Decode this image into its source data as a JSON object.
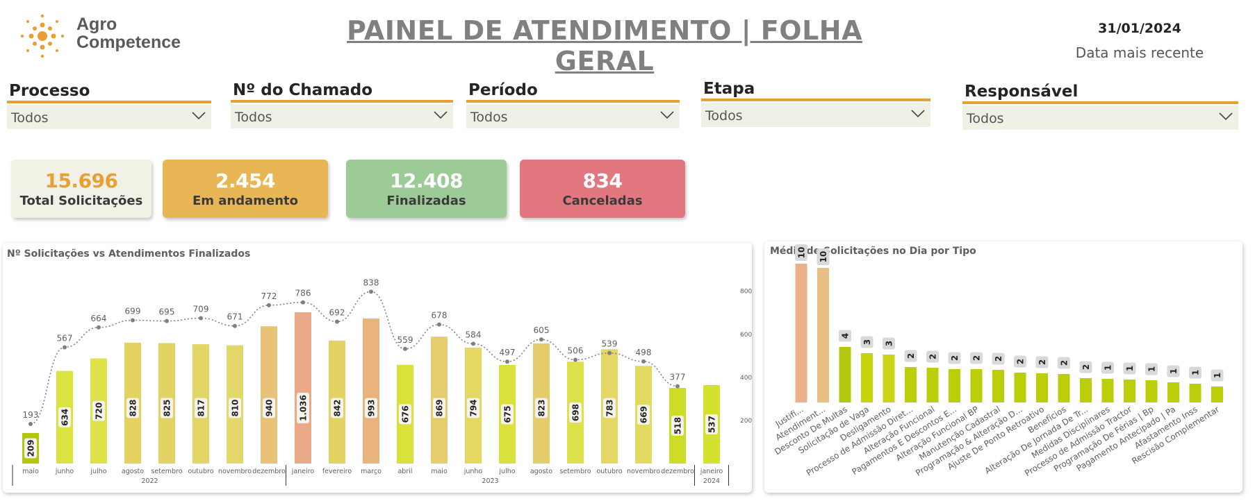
{
  "header": {
    "logo_line1": "Agro",
    "logo_line2": "Competence",
    "title": "PAINEL DE ATENDIMENTO | FOLHA GERAL",
    "date_value": "31/01/2024",
    "date_label": "Data mais recente"
  },
  "slicers": [
    {
      "label": "Processo",
      "value": "Todos"
    },
    {
      "label": "Nº do Chamado",
      "value": "Todos"
    },
    {
      "label": "Período",
      "value": "Todos"
    },
    {
      "label": "Etapa",
      "value": "Todos"
    },
    {
      "label": "Responsável",
      "value": "Todos"
    }
  ],
  "cards": [
    {
      "value": "15.696",
      "label": "Total Solicitações",
      "bg": "#f1f1e6",
      "color": "#e9a032"
    },
    {
      "value": "2.454",
      "label": "Em andamento",
      "bg": "#e9b655",
      "color": "#ffffff"
    },
    {
      "value": "12.408",
      "label": "Finalizadas",
      "bg": "#9ccb97",
      "color": "#ffffff"
    },
    {
      "value": "834",
      "label": "Canceladas",
      "bg": "#e27780",
      "color": "#ffffff"
    }
  ],
  "colors": {
    "accent": "#e9a032",
    "line": "#7f7f7f"
  },
  "chart_data": [
    {
      "type": "bar",
      "title": "Nº Solicitações vs Atendimentos Finalizados",
      "categories": [
        "maio",
        "junho",
        "julho",
        "agosto",
        "setembro",
        "outubro",
        "novembro",
        "dezembro",
        "janeiro",
        "fevereiro",
        "março",
        "abril",
        "maio",
        "junho",
        "julho",
        "agosto",
        "setembro",
        "outubro",
        "novembro",
        "dezembro",
        "janeiro"
      ],
      "year_groups": [
        {
          "label": "2022",
          "start": 0,
          "end": 7
        },
        {
          "label": "2023",
          "start": 8,
          "end": 19
        },
        {
          "label": "2024",
          "start": 20,
          "end": 20
        }
      ],
      "series": [
        {
          "type": "bar",
          "values": [
            209,
            634,
            720,
            828,
            825,
            817,
            810,
            940,
            1036,
            842,
            993,
            676,
            869,
            794,
            675,
            823,
            698,
            783,
            669,
            518,
            537
          ]
        },
        {
          "type": "line",
          "values": [
            193,
            567,
            664,
            699,
            695,
            709,
            671,
            772,
            786,
            692,
            838,
            559,
            678,
            584,
            497,
            605,
            506,
            539,
            498,
            377,
            null
          ]
        }
      ],
      "bar_colors": [
        "#b3c80c",
        "#dbe33e",
        "#dfe14a",
        "#e3d25f",
        "#e3d364",
        "#e3d667",
        "#e2d76a",
        "#e7c277",
        "#eaaa88",
        "#e3d363",
        "#e8b37d",
        "#dae139",
        "#e6cd70",
        "#e4d762",
        "#dbe13c",
        "#e6cd6c",
        "#dde24a",
        "#e5d765",
        "#e2d961",
        "#cddd27",
        "#d2e22e"
      ],
      "ylim": [
        0,
        1250
      ],
      "right_ticks": [
        200,
        400,
        600,
        800
      ],
      "right_ylim": [
        0,
        1000
      ]
    },
    {
      "type": "bar",
      "title": "Média de Solicitações no Dia por Tipo",
      "categories": [
        "Justifi...",
        "Atendiment...",
        "Desconto De Multas",
        "Solicitação de Vaga",
        "Desligamento",
        "Processo de Admissão Diret...",
        "Alteração Funcional",
        "Pagamentos E Descontos E...",
        "Alteração Funcional BP",
        "Manutenção Cadastral",
        "Programação & Alteração D...",
        "Ajuste De Ponto Retroativo",
        "Benefícios",
        "Alteração De Jornada De Tr...",
        "Medidas Disciplinares",
        "Processo de Admissão Tractor",
        "Programação De Férias | Bp",
        "Pagamento Antecipado | Pa",
        "Afastamento Inss",
        "Rescisão Complementar"
      ],
      "values": [
        10,
        10,
        4,
        3,
        3,
        2,
        2,
        2,
        2,
        2,
        2,
        2,
        2,
        2,
        1,
        1,
        1,
        1,
        1,
        1
      ],
      "bar_heights_rel": [
        10,
        9.7,
        4.0,
        3.55,
        3.45,
        2.55,
        2.5,
        2.4,
        2.4,
        2.35,
        2.15,
        2.1,
        2.05,
        1.75,
        1.7,
        1.65,
        1.6,
        1.45,
        1.35,
        1.15
      ],
      "bar_colors": [
        "#eab08c",
        "#e8c085",
        "#b3c80c",
        "#c6d40f",
        "#c8d414",
        "#bccd0a",
        "#bccd0a",
        "#bccd0a",
        "#bccd0a",
        "#bccd0a",
        "#bccd0a",
        "#bccd0a",
        "#bccd0a",
        "#bccd0a",
        "#bccd0a",
        "#bccd0a",
        "#bccd0a",
        "#bccd0a",
        "#bccd0a",
        "#bccd0a"
      ]
    }
  ]
}
